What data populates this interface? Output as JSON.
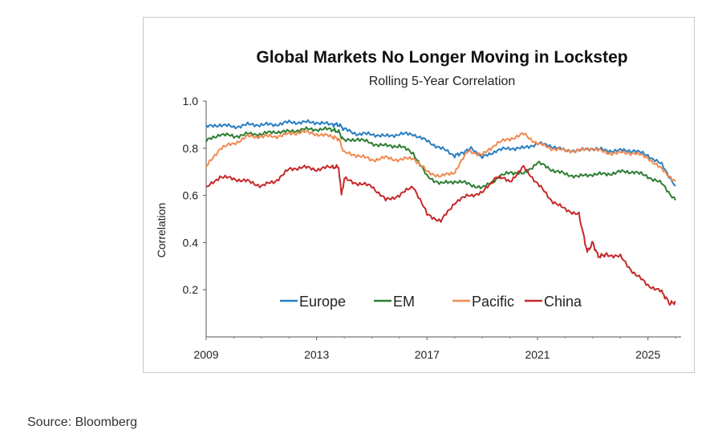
{
  "chart_data": {
    "type": "line",
    "title": "Global Markets No Longer Moving in Lockstep",
    "subtitle": "Rolling 5-Year Correlation",
    "xlabel": "",
    "ylabel": "Correlation",
    "xlim": [
      2009,
      2026.2
    ],
    "ylim": [
      0.0,
      1.0
    ],
    "xticks": [
      2009,
      2013,
      2017,
      2021,
      2025
    ],
    "yticks": [
      0.2,
      0.4,
      0.6,
      0.8,
      1.0
    ],
    "ytick_labels": [
      "0.2",
      "0.4",
      "0.6",
      "0.8",
      "1.0"
    ],
    "xtick_labels": [
      "2009",
      "2013",
      "2017",
      "2021",
      "2025"
    ],
    "legend_position": "lower-center",
    "series": [
      {
        "name": "Europe",
        "color": "#2a7fc1",
        "x": [
          2009,
          2009.5,
          2010,
          2010.5,
          2011,
          2011.5,
          2012,
          2012.5,
          2013,
          2013.5,
          2013.8,
          2014,
          2014.5,
          2015,
          2015.5,
          2016,
          2016.5,
          2017,
          2017.5,
          2018,
          2018.3,
          2018.6,
          2019,
          2019.5,
          2020,
          2020.5,
          2021,
          2021.5,
          2022,
          2022.5,
          2023,
          2023.5,
          2024,
          2024.5,
          2025,
          2025.5,
          2026
        ],
        "values": [
          0.89,
          0.9,
          0.89,
          0.9,
          0.9,
          0.9,
          0.91,
          0.91,
          0.91,
          0.9,
          0.9,
          0.88,
          0.86,
          0.86,
          0.85,
          0.86,
          0.86,
          0.83,
          0.8,
          0.77,
          0.78,
          0.8,
          0.76,
          0.79,
          0.8,
          0.8,
          0.82,
          0.81,
          0.79,
          0.79,
          0.8,
          0.79,
          0.79,
          0.79,
          0.77,
          0.73,
          0.64
        ]
      },
      {
        "name": "EM",
        "color": "#2e7d32",
        "x": [
          2009,
          2009.5,
          2010,
          2010.5,
          2011,
          2011.5,
          2012,
          2012.5,
          2013,
          2013.5,
          2013.8,
          2014,
          2014.5,
          2015,
          2015.5,
          2016,
          2016.5,
          2017,
          2017.5,
          2018,
          2018.5,
          2019,
          2019.5,
          2020,
          2020.5,
          2021,
          2021.5,
          2022,
          2022.5,
          2023,
          2023.5,
          2024,
          2024.5,
          2025,
          2025.5,
          2026
        ],
        "values": [
          0.83,
          0.86,
          0.85,
          0.86,
          0.86,
          0.87,
          0.87,
          0.88,
          0.88,
          0.88,
          0.87,
          0.83,
          0.84,
          0.82,
          0.81,
          0.81,
          0.78,
          0.68,
          0.65,
          0.66,
          0.65,
          0.63,
          0.67,
          0.7,
          0.69,
          0.74,
          0.71,
          0.69,
          0.68,
          0.69,
          0.69,
          0.7,
          0.7,
          0.68,
          0.65,
          0.58
        ]
      },
      {
        "name": "Pacific",
        "color": "#f08a50",
        "x": [
          2009,
          2009.5,
          2010,
          2010.5,
          2011,
          2011.5,
          2012,
          2012.5,
          2013,
          2013.5,
          2013.8,
          2014,
          2014.5,
          2015,
          2015.5,
          2016,
          2016.5,
          2017,
          2017.5,
          2018,
          2018.5,
          2019,
          2019.5,
          2020,
          2020.5,
          2021,
          2021.5,
          2022,
          2022.5,
          2023,
          2023.5,
          2024,
          2024.5,
          2025,
          2025.5,
          2026
        ],
        "values": [
          0.72,
          0.8,
          0.82,
          0.85,
          0.85,
          0.85,
          0.86,
          0.87,
          0.86,
          0.85,
          0.84,
          0.78,
          0.77,
          0.75,
          0.76,
          0.75,
          0.76,
          0.7,
          0.68,
          0.7,
          0.79,
          0.77,
          0.82,
          0.84,
          0.86,
          0.82,
          0.8,
          0.79,
          0.79,
          0.8,
          0.78,
          0.78,
          0.78,
          0.76,
          0.71,
          0.66
        ]
      },
      {
        "name": "China",
        "color": "#c62828",
        "x": [
          2009,
          2009.5,
          2010,
          2010.5,
          2011,
          2011.5,
          2012,
          2012.5,
          2013,
          2013.5,
          2013.8,
          2013.9,
          2014,
          2014.5,
          2015,
          2015.5,
          2016,
          2016.5,
          2017,
          2017.5,
          2018,
          2018.5,
          2019,
          2019.5,
          2020,
          2020.5,
          2021,
          2021.5,
          2022,
          2022.5,
          2022.8,
          2023,
          2023.2,
          2023.5,
          2024,
          2024.5,
          2025,
          2025.5,
          2025.8,
          2026
        ],
        "values": [
          0.63,
          0.68,
          0.67,
          0.66,
          0.64,
          0.66,
          0.71,
          0.72,
          0.71,
          0.72,
          0.72,
          0.6,
          0.67,
          0.65,
          0.64,
          0.58,
          0.6,
          0.64,
          0.52,
          0.49,
          0.57,
          0.6,
          0.61,
          0.68,
          0.66,
          0.72,
          0.65,
          0.58,
          0.54,
          0.52,
          0.36,
          0.4,
          0.34,
          0.35,
          0.34,
          0.27,
          0.22,
          0.19,
          0.14,
          0.15
        ]
      }
    ]
  },
  "source": "Source: Bloomberg"
}
